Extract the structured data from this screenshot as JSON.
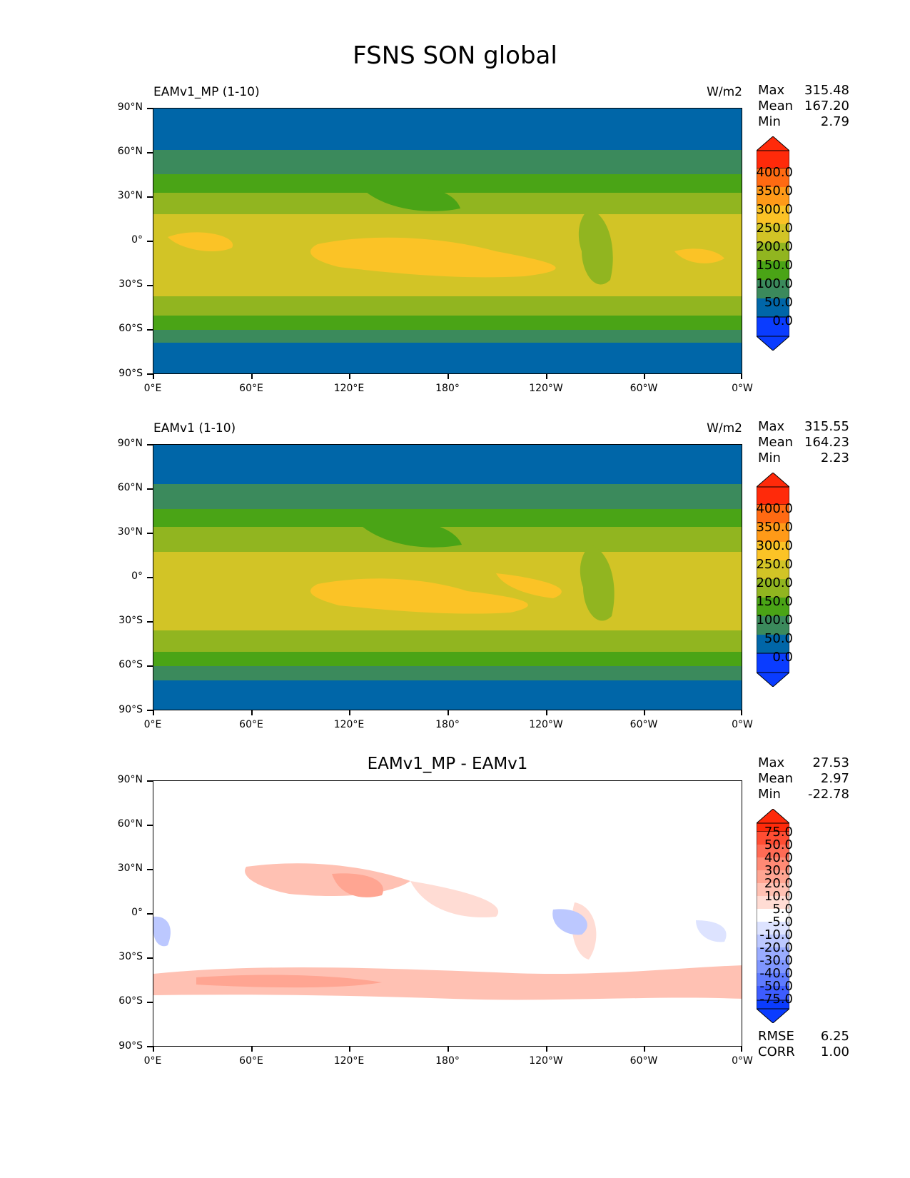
{
  "figure": {
    "title": "FSNS SON global"
  },
  "axes": {
    "yticks": [
      "90°N",
      "60°N",
      "30°N",
      "0°",
      "30°S",
      "60°S",
      "90°S"
    ],
    "xticks": [
      "0°E",
      "60°E",
      "120°E",
      "180°",
      "120°W",
      "60°W",
      "0°W"
    ]
  },
  "panels": [
    {
      "title_left": "EAMv1_MP (1-10)",
      "units": "W/m2",
      "stats": {
        "max_label": "Max",
        "max": "315.48",
        "mean_label": "Mean",
        "mean": "167.20",
        "min_label": "Min",
        "min": "2.79"
      },
      "colorbar_labels": [
        "400.0",
        "350.0",
        "300.0",
        "250.0",
        "200.0",
        "150.0",
        "100.0",
        "50.0",
        "0.0"
      ],
      "colorbar_colors": [
        "#ff2a0a",
        "#ff6a12",
        "#ff9a18",
        "#fbc326",
        "#d2c426",
        "#91b520",
        "#4aa416",
        "#3b8a5c",
        "#0066a8",
        "#0a3cff"
      ]
    },
    {
      "title_left": "EAMv1 (1-10)",
      "units": "W/m2",
      "stats": {
        "max_label": "Max",
        "max": "315.55",
        "mean_label": "Mean",
        "mean": "164.23",
        "min_label": "Min",
        "min": "2.23"
      },
      "colorbar_labels": [
        "400.0",
        "350.0",
        "300.0",
        "250.0",
        "200.0",
        "150.0",
        "100.0",
        "50.0",
        "0.0"
      ],
      "colorbar_colors": [
        "#ff2a0a",
        "#ff6a12",
        "#ff9a18",
        "#fbc326",
        "#d2c426",
        "#91b520",
        "#4aa416",
        "#3b8a5c",
        "#0066a8",
        "#0a3cff"
      ]
    },
    {
      "title_center": "EAMv1_MP - EAMv1",
      "stats": {
        "max_label": "Max",
        "max": "27.53",
        "mean_label": "Mean",
        "mean": "2.97",
        "min_label": "Min",
        "min": "-22.78"
      },
      "colorbar_labels": [
        "75.0",
        "50.0",
        "40.0",
        "30.0",
        "20.0",
        "10.0",
        "5.0",
        "-5.0",
        "-10.0",
        "-20.0",
        "-30.0",
        "-40.0",
        "-50.0",
        "-75.0"
      ],
      "colorbar_colors": [
        "#ff2a0a",
        "#ff4d33",
        "#ff6b55",
        "#ff8a75",
        "#ffa592",
        "#ffc1b3",
        "#ffdcd4",
        "#ffffff",
        "#dde3ff",
        "#bcc8ff",
        "#9aacff",
        "#7f96ff",
        "#5f7bff",
        "#3d5cff",
        "#0a3cff"
      ],
      "extra_stats": {
        "rmse_label": "RMSE",
        "rmse": "6.25",
        "corr_label": "CORR",
        "corr": "1.00"
      }
    }
  ]
}
